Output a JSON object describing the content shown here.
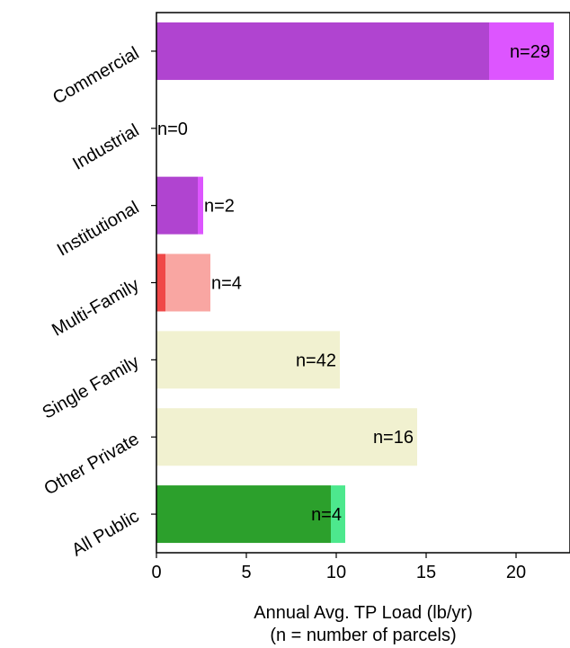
{
  "chart_data": {
    "type": "bar",
    "orientation": "horizontal",
    "stacked": true,
    "xlabel": "Annual Avg. TP Load (lb/yr)",
    "xlabel_line2": "(n = number of parcels)",
    "ylabel": "",
    "xlim": [
      0,
      23
    ],
    "xticks": [
      "0",
      "5",
      "10",
      "15",
      "20"
    ],
    "grid": false,
    "categories": [
      "Commercial",
      "Industrial",
      "Institutional",
      "Multi-Family",
      "Single Family",
      "Other Private",
      "All Public"
    ],
    "parcel_counts": [
      "n=29",
      "n=0",
      "n=2",
      "n=4",
      "n=42",
      "n=16",
      "n=4"
    ],
    "count_label_placement": [
      "inside",
      "outside",
      "outside",
      "outside",
      "inside",
      "inside",
      "inside"
    ],
    "series": [
      {
        "values": [
          18.5,
          0,
          2.3,
          0.5,
          10.2,
          14.5,
          9.7
        ],
        "colors": [
          "#b044d0",
          "#b044d0",
          "#b044d0",
          "#f04848",
          "#f1f1d0",
          "#f1f1d0",
          "#2ca02c"
        ]
      },
      {
        "values": [
          3.6,
          0,
          0.3,
          2.5,
          0,
          0,
          0.8
        ],
        "colors": [
          "#dd55ff",
          "#dd55ff",
          "#dd55ff",
          "#f9a6a2",
          "#f1f1d0",
          "#f1f1d0",
          "#4de88d"
        ]
      }
    ]
  }
}
